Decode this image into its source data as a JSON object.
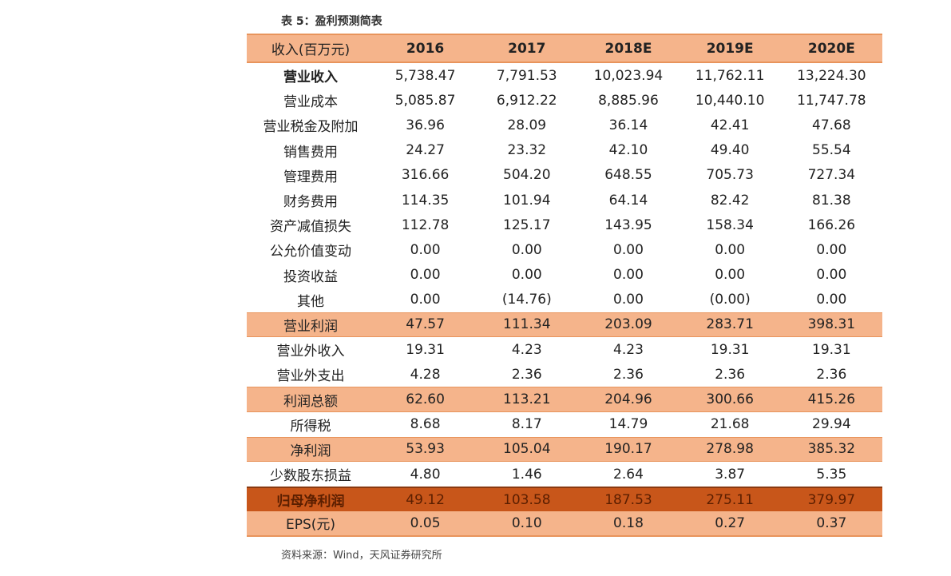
{
  "caption": "表 5：盈利预测简表",
  "header": {
    "label": "收入(百万元)",
    "years": [
      "2016",
      "2017",
      "2018E",
      "2019E",
      "2020E"
    ]
  },
  "rows": [
    {
      "label": "营业收入",
      "values": [
        "5,738.47",
        "7,791.53",
        "10,023.94",
        "11,762.11",
        "13,224.30"
      ],
      "style": "bold"
    },
    {
      "label": "营业成本",
      "values": [
        "5,085.87",
        "6,912.22",
        "8,885.96",
        "10,440.10",
        "11,747.78"
      ],
      "style": ""
    },
    {
      "label": "营业税金及附加",
      "values": [
        "36.96",
        "28.09",
        "36.14",
        "42.41",
        "47.68"
      ],
      "style": ""
    },
    {
      "label": "销售费用",
      "values": [
        "24.27",
        "23.32",
        "42.10",
        "49.40",
        "55.54"
      ],
      "style": ""
    },
    {
      "label": "管理费用",
      "values": [
        "316.66",
        "504.20",
        "648.55",
        "705.73",
        "727.34"
      ],
      "style": ""
    },
    {
      "label": "财务费用",
      "values": [
        "114.35",
        "101.94",
        "64.14",
        "82.42",
        "81.38"
      ],
      "style": ""
    },
    {
      "label": "资产减值损失",
      "values": [
        "112.78",
        "125.17",
        "143.95",
        "158.34",
        "166.26"
      ],
      "style": ""
    },
    {
      "label": "公允价值变动",
      "values": [
        "0.00",
        "0.00",
        "0.00",
        "0.00",
        "0.00"
      ],
      "style": ""
    },
    {
      "label": "投资收益",
      "values": [
        "0.00",
        "0.00",
        "0.00",
        "0.00",
        "0.00"
      ],
      "style": ""
    },
    {
      "label": "其他",
      "values": [
        "0.00",
        "(14.76)",
        "0.00",
        "(0.00)",
        "0.00"
      ],
      "style": ""
    },
    {
      "label": "营业利润",
      "values": [
        "47.57",
        "111.34",
        "203.09",
        "283.71",
        "398.31"
      ],
      "style": "light"
    },
    {
      "label": "营业外收入",
      "values": [
        "19.31",
        "4.23",
        "4.23",
        "19.31",
        "19.31"
      ],
      "style": ""
    },
    {
      "label": "营业外支出",
      "values": [
        "4.28",
        "2.36",
        "2.36",
        "2.36",
        "2.36"
      ],
      "style": ""
    },
    {
      "label": "利润总额",
      "values": [
        "62.60",
        "113.21",
        "204.96",
        "300.66",
        "415.26"
      ],
      "style": "light"
    },
    {
      "label": "所得税",
      "values": [
        "8.68",
        "8.17",
        "14.79",
        "21.68",
        "29.94"
      ],
      "style": ""
    },
    {
      "label": "净利润",
      "values": [
        "53.93",
        "105.04",
        "190.17",
        "278.98",
        "385.32"
      ],
      "style": "light"
    },
    {
      "label": "少数股东损益",
      "values": [
        "4.80",
        "1.46",
        "2.64",
        "3.87",
        "5.35"
      ],
      "style": ""
    },
    {
      "label": "归母净利润",
      "values": [
        "49.12",
        "103.58",
        "187.53",
        "275.11",
        "379.97"
      ],
      "style": "dark"
    },
    {
      "label": "EPS(元)",
      "values": [
        "0.05",
        "0.10",
        "0.18",
        "0.27",
        "0.37"
      ],
      "style": "eps"
    }
  ],
  "source": "资料来源：Wind，天风证券研究所"
}
